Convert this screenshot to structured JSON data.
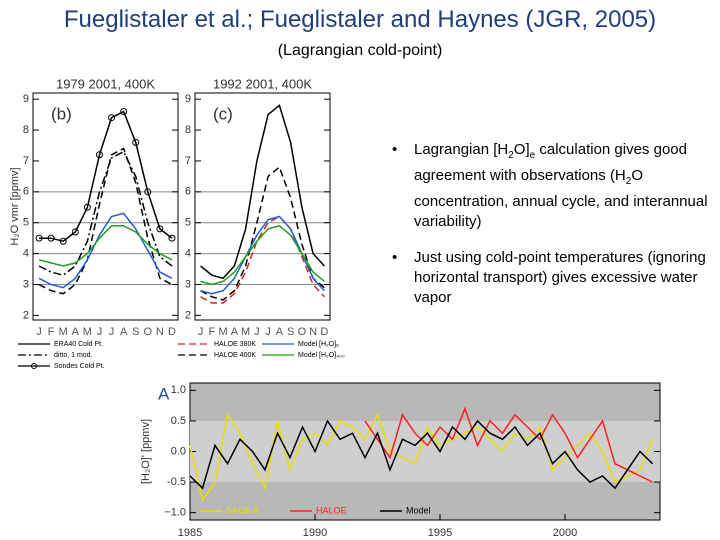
{
  "header": {
    "title": "Fueglistaler et al.; Fueglistaler and Haynes (JGR, 2005)",
    "subtitle": "(Lagrangian cold-point)"
  },
  "bullets": [
    [
      {
        "text": "Lagrangian [H"
      },
      {
        "text": "2",
        "sub": true
      },
      {
        "text": "O]"
      },
      {
        "text": "e",
        "sub": true
      },
      {
        "text": " calculation gives good agreement with observations (H"
      },
      {
        "text": "2",
        "sub": true
      },
      {
        "text": "O concentration, annual cycle, and interannual variability)"
      }
    ],
    [
      {
        "text": "Just using cold-point temperatures (ignoring horizontal transport) gives excessive water vapor"
      }
    ]
  ],
  "legend": [
    {
      "label": "ERA40 Cold Pt.",
      "color": "#000000",
      "style": "solid"
    },
    {
      "label": "ditto, 1 mod.",
      "color": "#000000",
      "style": "dashdot"
    },
    {
      "label": "Sondes Cold Pt.",
      "color": "#000000",
      "style": "solid",
      "marker": "circle"
    },
    {
      "label": "HALOE 380K",
      "color": "#e02020",
      "style": "dashed"
    },
    {
      "label": "HALOE 400K",
      "color": "#000000",
      "style": "dashed"
    },
    {
      "label": "Model [H₂O]ₑ",
      "color": "#2060d0",
      "style": "solid"
    },
    {
      "label": "Model [H₂O]₄₀₀",
      "color": "#20a020",
      "style": "solid"
    }
  ],
  "chart_data": [
    {
      "type": "line",
      "title": "1979  2001, 400K",
      "label": "(b)",
      "y_label": "H₂O vmr [ppmv]",
      "categories": [
        "J",
        "F",
        "M",
        "A",
        "M",
        "J",
        "J",
        "A",
        "S",
        "O",
        "N",
        "D"
      ],
      "ylim": [
        1.85,
        9.2
      ],
      "yticks": [
        2,
        3,
        4,
        5,
        6,
        7,
        8,
        9
      ],
      "grid_values": [
        3,
        4,
        5,
        6
      ],
      "series": [
        {
          "color": "#000000",
          "style": "solid",
          "marker": "circle",
          "values": [
            4.5,
            4.5,
            4.4,
            4.7,
            5.5,
            7.2,
            8.4,
            8.6,
            7.6,
            6.0,
            4.8,
            4.5
          ]
        },
        {
          "color": "#000000",
          "style": "dashed",
          "values": [
            3.0,
            2.8,
            2.7,
            3.0,
            3.8,
            5.6,
            7.2,
            7.4,
            6.3,
            4.5,
            3.2,
            3.0
          ]
        },
        {
          "color": "#000000",
          "style": "dashdot",
          "values": [
            3.6,
            3.4,
            3.3,
            3.6,
            4.4,
            6.0,
            7.1,
            7.3,
            6.5,
            5.0,
            3.9,
            3.6
          ]
        },
        {
          "color": "#2060d0",
          "style": "solid",
          "values": [
            3.2,
            3.0,
            2.9,
            3.2,
            3.8,
            4.6,
            5.2,
            5.3,
            4.8,
            4.1,
            3.4,
            3.2
          ]
        },
        {
          "color": "#20a020",
          "style": "solid",
          "values": [
            3.8,
            3.7,
            3.6,
            3.7,
            4.0,
            4.5,
            4.9,
            4.9,
            4.7,
            4.3,
            4.0,
            3.8
          ]
        }
      ]
    },
    {
      "type": "line",
      "title": "1992  2001, 400K",
      "label": "(c)",
      "categories": [
        "J",
        "F",
        "M",
        "A",
        "M",
        "J",
        "J",
        "A",
        "S",
        "O",
        "N",
        "D"
      ],
      "ylim": [
        1.85,
        9.2
      ],
      "yticks": [
        2,
        3,
        4,
        5,
        6,
        7,
        8,
        9
      ],
      "grid_values": [
        3,
        4,
        5,
        6
      ],
      "series": [
        {
          "color": "#000000",
          "style": "solid",
          "values": [
            3.6,
            3.3,
            3.2,
            3.6,
            4.8,
            7.0,
            8.5,
            8.8,
            7.6,
            5.5,
            4.0,
            3.6
          ]
        },
        {
          "color": "#000000",
          "style": "dashed",
          "values": [
            2.8,
            2.6,
            2.5,
            2.8,
            3.6,
            5.0,
            6.5,
            6.8,
            5.8,
            4.3,
            3.2,
            2.9
          ]
        },
        {
          "color": "#e02020",
          "style": "dashed",
          "values": [
            2.6,
            2.4,
            2.4,
            2.7,
            3.4,
            4.4,
            5.0,
            5.2,
            4.8,
            3.9,
            3.0,
            2.6
          ]
        },
        {
          "color": "#2060d0",
          "style": "solid",
          "values": [
            2.8,
            2.7,
            2.8,
            3.2,
            3.9,
            4.6,
            5.1,
            5.2,
            4.8,
            4.0,
            3.2,
            2.8
          ]
        },
        {
          "color": "#20a020",
          "style": "solid",
          "values": [
            3.1,
            3.0,
            3.1,
            3.4,
            3.9,
            4.4,
            4.8,
            4.9,
            4.6,
            4.0,
            3.4,
            3.1
          ]
        }
      ]
    },
    {
      "type": "line",
      "label": "A",
      "y_label": "[H₂O]' [ppmv]",
      "x": [
        1985,
        1985.5,
        1986,
        1986.5,
        1987,
        1987.5,
        1988,
        1988.5,
        1989,
        1989.5,
        1990,
        1990.5,
        1991,
        1991.5,
        1992,
        1992.5,
        1993,
        1993.5,
        1994,
        1994.5,
        1995,
        1995.5,
        1996,
        1996.5,
        1997,
        1997.5,
        1998,
        1998.5,
        1999,
        1999.5,
        2000,
        2000.5,
        2001,
        2001.5,
        2002,
        2002.5,
        2003,
        2003.5
      ],
      "xlim": [
        1985,
        2003.8
      ],
      "xticks": [
        1985,
        1990,
        1995,
        2000
      ],
      "ylim": [
        -1.12,
        1.12
      ],
      "yticks": [
        {
          "value": 1,
          "label": "1.0"
        },
        0.5,
        {
          "value": 0,
          "label": "0.0"
        },
        -0.5,
        {
          "value": -1,
          "label": "−1.0"
        }
      ],
      "series": [
        {
          "name": "SAGE II",
          "color": "#e8e000",
          "values": [
            0.1,
            -0.8,
            -0.5,
            0.6,
            0.3,
            -0.2,
            -0.6,
            0.5,
            -0.3,
            0.2,
            0.3,
            0.1,
            0.5,
            0.4,
            0.2,
            0.6,
            0.0,
            -0.1,
            -0.2,
            0.4,
            0.1,
            0.2,
            0.3,
            0.4,
            0.2,
            0.0,
            0.3,
            0.2,
            0.4,
            -0.3,
            -0.1,
            0.1,
            0.3,
            0.0,
            -0.5,
            -0.4,
            -0.3,
            0.2
          ]
        },
        {
          "name": "HALOE",
          "color": "#ff2020",
          "values": [
            null,
            null,
            null,
            null,
            null,
            null,
            null,
            null,
            null,
            null,
            null,
            null,
            null,
            null,
            0.5,
            0.2,
            -0.1,
            0.6,
            0.3,
            0.1,
            0.4,
            0.2,
            0.7,
            0.1,
            0.5,
            0.3,
            0.6,
            0.4,
            0.2,
            0.6,
            0.3,
            -0.1,
            0.2,
            0.5,
            -0.2,
            -0.3,
            -0.4,
            -0.5
          ]
        },
        {
          "name": "Model",
          "color": "#000000",
          "values": [
            -0.4,
            -0.6,
            0.1,
            -0.2,
            0.2,
            0.0,
            -0.3,
            0.3,
            -0.1,
            0.4,
            0.0,
            0.5,
            0.2,
            0.3,
            -0.1,
            0.3,
            -0.3,
            0.2,
            0.1,
            0.3,
            0.0,
            0.4,
            0.2,
            0.5,
            0.3,
            0.2,
            0.4,
            0.1,
            0.3,
            -0.2,
            0.0,
            -0.3,
            -0.5,
            -0.4,
            -0.6,
            -0.3,
            0.0,
            -0.2
          ]
        }
      ]
    }
  ]
}
